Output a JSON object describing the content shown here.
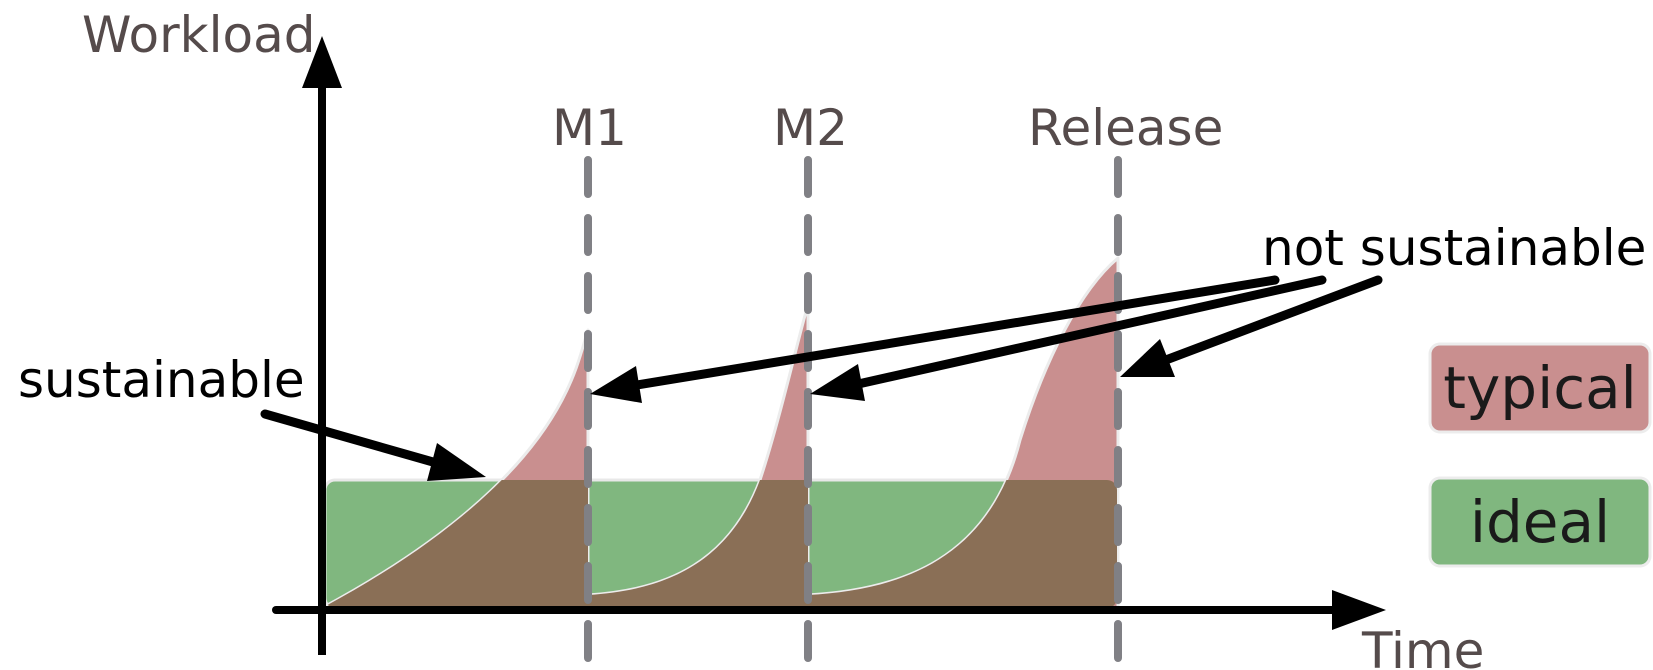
{
  "axes": {
    "y_label": "Workload",
    "x_label": "Time"
  },
  "milestones": [
    {
      "label": "M1"
    },
    {
      "label": "M2"
    },
    {
      "label": "Release"
    }
  ],
  "annotations": {
    "sustainable": "sustainable",
    "not_sustainable": "not sustainable"
  },
  "legend": [
    {
      "label": "typical",
      "color": "#c98f8f"
    },
    {
      "label": "ideal",
      "color": "#80b77f"
    }
  ],
  "colors": {
    "ideal": "#80b77f",
    "typical": "#c98f8f",
    "overlap": "#8a6f56",
    "milestone_line": "#808085",
    "arrow": "#000000"
  }
}
